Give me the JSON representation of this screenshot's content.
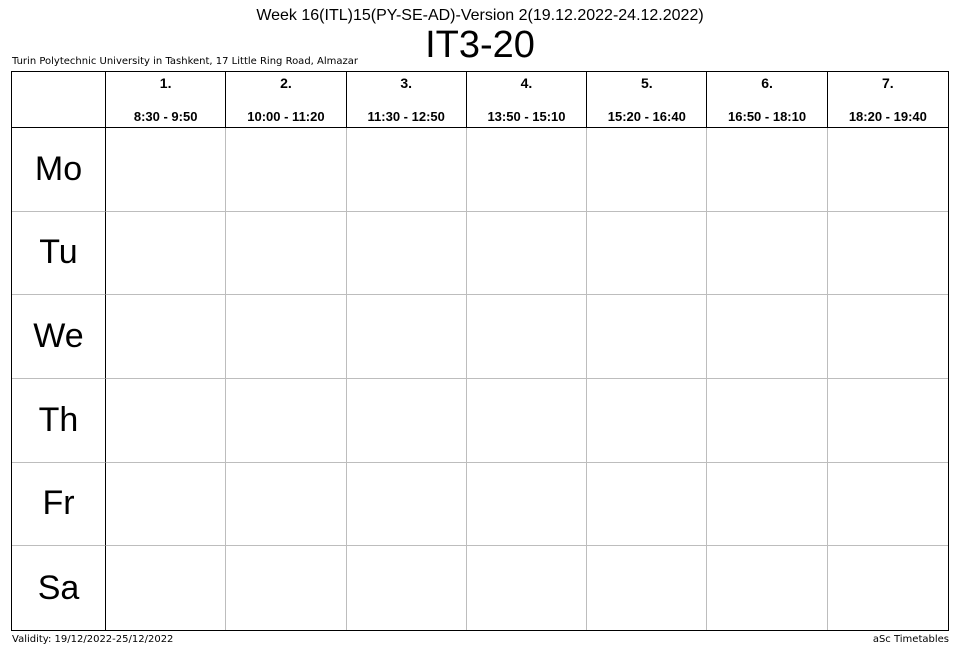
{
  "header": {
    "subtitle": "Week 16(ITL)15(PY-SE-AD)-Version 2(19.12.2022-24.12.2022)",
    "class_name": "IT3-20",
    "school": "Turin Polytechnic University in Tashkent, 17 Little Ring Road, Almazar"
  },
  "periods": [
    {
      "num": "1.",
      "time": "8:30 - 9:50"
    },
    {
      "num": "2.",
      "time": "10:00 - 11:20"
    },
    {
      "num": "3.",
      "time": "11:30 - 12:50"
    },
    {
      "num": "4.",
      "time": "13:50 - 15:10"
    },
    {
      "num": "5.",
      "time": "15:20 - 16:40"
    },
    {
      "num": "6.",
      "time": "16:50 - 18:10"
    },
    {
      "num": "7.",
      "time": "18:20 - 19:40"
    }
  ],
  "days": [
    "Mo",
    "Tu",
    "We",
    "Th",
    "Fr",
    "Sa"
  ],
  "footer": {
    "validity": "Validity: 19/12/2022-25/12/2022",
    "generator": "aSc Timetables"
  }
}
